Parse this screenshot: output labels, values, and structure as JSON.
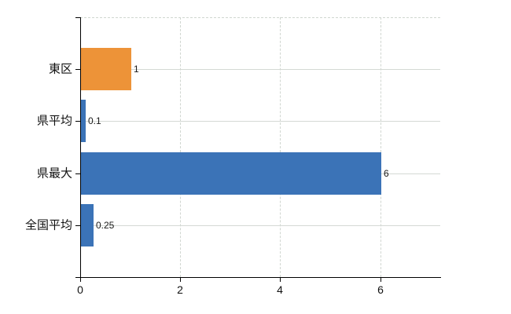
{
  "chart_data": {
    "type": "bar",
    "orientation": "horizontal",
    "title": "",
    "xlabel": "",
    "ylabel": "",
    "categories": [
      "東区",
      "県平均",
      "県最大",
      "全国平均"
    ],
    "values": [
      1,
      0.1,
      6,
      0.25
    ],
    "value_labels": [
      "1",
      "0.1",
      "6",
      "0.25"
    ],
    "bar_colors": [
      "#ED9338",
      "#3B73B7",
      "#3B73B7",
      "#3B73B7"
    ],
    "xlim": [
      0,
      7.2
    ],
    "x_ticks": [
      {
        "value": 0,
        "label": "0"
      },
      {
        "value": 2,
        "label": "2"
      },
      {
        "value": 4,
        "label": "4"
      },
      {
        "value": 6,
        "label": "6"
      }
    ],
    "legend_position": "none",
    "grid": {
      "vertical": "dashed",
      "horizontal": "solid-at-category-centers",
      "top_border": "dashed"
    }
  },
  "colors": {
    "background": "#ffffff",
    "bar_orange": "#ED9338",
    "bar_blue": "#3B73B7",
    "axis": "#000000",
    "grid_horizontal": "#d4d9d4",
    "grid_vertical": "#d0d6d0",
    "text": "#111111"
  }
}
